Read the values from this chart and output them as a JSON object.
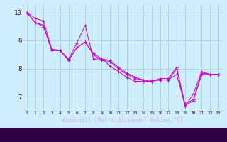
{
  "xlabel": "Windchill (Refroidissement éolien,°C)",
  "bg_color": "#cceeff",
  "line_color": "#cc00cc",
  "grid_color": "#aacccc",
  "axis_bar_color": "#330044",
  "xlim": [
    -0.5,
    23.5
  ],
  "ylim": [
    6.5,
    10.3
  ],
  "yticks": [
    7,
    8,
    9,
    10
  ],
  "xticks": [
    0,
    1,
    2,
    3,
    4,
    5,
    6,
    7,
    8,
    9,
    10,
    11,
    12,
    13,
    14,
    15,
    16,
    17,
    18,
    19,
    20,
    21,
    22,
    23
  ],
  "series1_x": [
    0,
    1,
    2,
    3,
    4,
    5,
    6,
    7,
    8,
    9,
    10,
    11,
    12,
    13,
    14,
    15,
    16,
    17,
    18,
    19,
    20,
    21,
    22,
    23
  ],
  "series1_y": [
    10.0,
    9.8,
    9.7,
    8.7,
    8.65,
    8.35,
    8.9,
    9.55,
    8.35,
    8.35,
    8.1,
    7.9,
    7.7,
    7.55,
    7.55,
    7.55,
    7.65,
    7.65,
    8.05,
    6.65,
    7.1,
    7.9,
    7.8,
    7.8
  ],
  "series2_x": [
    0,
    1,
    2,
    3,
    4,
    5,
    6,
    7,
    8,
    9,
    10,
    11,
    12,
    13,
    14,
    15,
    16,
    17,
    18,
    19,
    20,
    21,
    22,
    23
  ],
  "series2_y": [
    10.0,
    9.65,
    9.55,
    8.65,
    8.65,
    8.3,
    8.75,
    8.95,
    8.55,
    8.35,
    8.3,
    8.05,
    7.85,
    7.7,
    7.6,
    7.55,
    7.6,
    7.6,
    7.8,
    6.7,
    6.85,
    7.8,
    7.8,
    7.8
  ],
  "series3_x": [
    0,
    1,
    2,
    3,
    4,
    5,
    6,
    7,
    8,
    9,
    10,
    11,
    12,
    13,
    14,
    15,
    16,
    17,
    18,
    19,
    20,
    21,
    22,
    23
  ],
  "series3_y": [
    10.0,
    9.65,
    9.5,
    8.65,
    8.65,
    8.3,
    8.75,
    8.95,
    8.5,
    8.3,
    8.25,
    8.0,
    7.8,
    7.65,
    7.6,
    7.6,
    7.6,
    7.6,
    8.0,
    6.75,
    6.9,
    7.85,
    7.8,
    7.8
  ]
}
